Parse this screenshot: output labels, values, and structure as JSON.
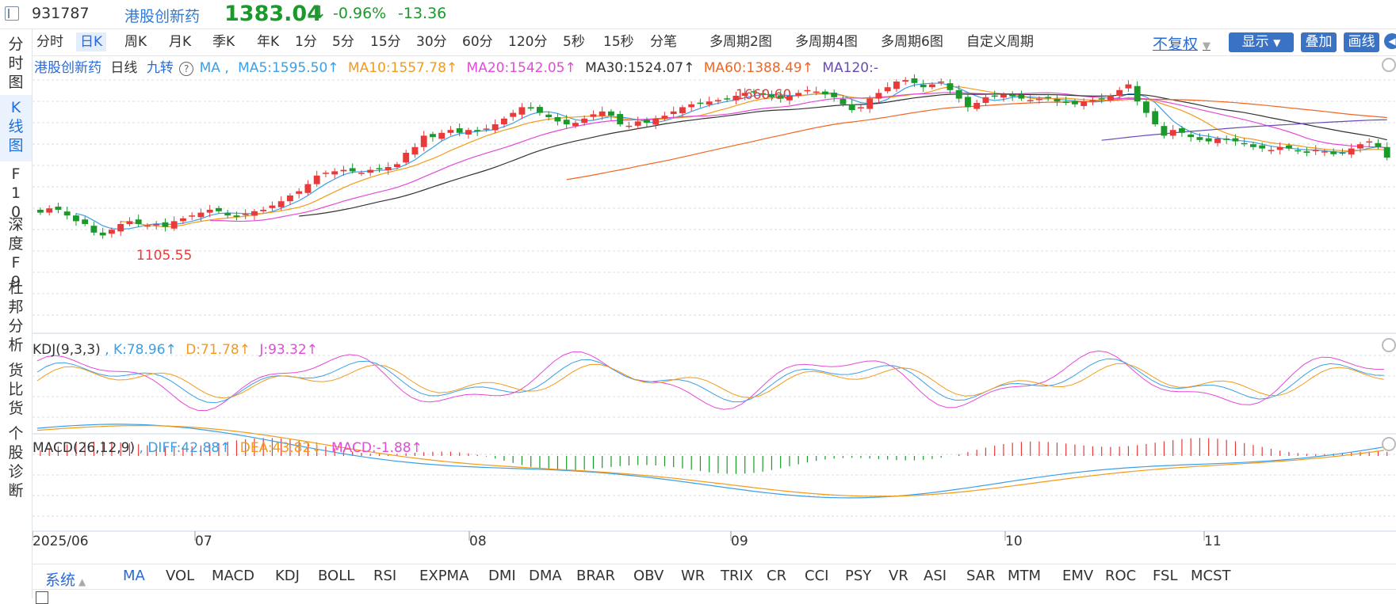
{
  "header": {
    "code": "931787",
    "name": "港股创新药",
    "price": "1383.04",
    "arrow": "↓",
    "change_pct": "-0.96%",
    "change_val": "-13.36"
  },
  "leftnav": [
    "分时图",
    "K线图",
    "F10",
    "深度F9",
    "杜邦分析",
    "货比货",
    "个股诊断"
  ],
  "periods": [
    "分时",
    "日K",
    "周K",
    "月K",
    "季K",
    "年K",
    "1分",
    "5分",
    "15分",
    "30分",
    "60分",
    "120分",
    "5秒",
    "15秒",
    "分笔",
    "多周期2图",
    "多周期4图",
    "多周期6图",
    "自定义周期"
  ],
  "toolbar": {
    "fuquan": "不复权",
    "display": "显示",
    "overlay": "叠加",
    "draw": "画线"
  },
  "main_legend": {
    "name": "港股创新药",
    "period": "日线",
    "jiuzhuan": "九转",
    "help": "?",
    "ma": "MA ,",
    "ma5": "MA5:1595.50↑",
    "ma10": "MA10:1557.78↑",
    "ma20": "MA20:1542.05↑",
    "ma30": "MA30:1524.07↑",
    "ma60": "MA60:1388.49↑",
    "ma120": "MA120:-"
  },
  "annotations": {
    "high": "1660.60",
    "low": "1105.55"
  },
  "kdj_legend": {
    "name": "KDJ(9,3,3)",
    "k": ", K:78.96↑",
    "d": "D:71.78↑",
    "j": "J:93.32↑"
  },
  "macd_legend": {
    "name": "MACD(26,12,9)",
    "diff": ", DIFF:42.88↑",
    "dea": "DEA:43.82↓",
    "macd": "MACD:-1.88↑"
  },
  "xaxis": [
    "2025/06",
    "07",
    "08",
    "09",
    "10",
    "11"
  ],
  "bottom_tabs": [
    "系统",
    "MA",
    "VOL",
    "MACD",
    "KDJ",
    "BOLL",
    "RSI",
    "EXPMA",
    "DMI",
    "DMA",
    "BRAR",
    "OBV",
    "WR",
    "TRIX",
    "CR",
    "CCI",
    "PSY",
    "VR",
    "ASI",
    "SAR",
    "MTM",
    "EMV",
    "ROC",
    "FSL",
    "MCST"
  ],
  "colors": {
    "up": "#e83a3a",
    "down": "#1a9a2a",
    "ma5": "#3aa0e8",
    "ma10": "#f39a1a",
    "ma20": "#e44ad8",
    "ma30": "#333333",
    "ma60": "#f26522",
    "ma120": "#6a4ab8",
    "accent": "#2a6ad6"
  }
}
